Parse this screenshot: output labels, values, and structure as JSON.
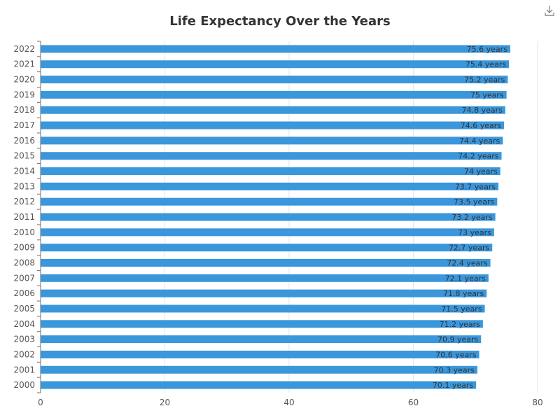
{
  "chart_data": {
    "type": "bar",
    "orientation": "horizontal",
    "title": "Life Expectancy Over the Years",
    "categories": [
      "2000",
      "2001",
      "2002",
      "2003",
      "2004",
      "2005",
      "2006",
      "2007",
      "2008",
      "2009",
      "2010",
      "2011",
      "2012",
      "2013",
      "2014",
      "2015",
      "2016",
      "2017",
      "2018",
      "2019",
      "2020",
      "2021",
      "2022"
    ],
    "values": [
      70.1,
      70.3,
      70.6,
      70.9,
      71.2,
      71.5,
      71.8,
      72.1,
      72.4,
      72.7,
      73,
      73.2,
      73.5,
      73.7,
      74,
      74.2,
      74.4,
      74.6,
      74.8,
      75,
      75.2,
      75.4,
      75.6
    ],
    "value_labels": [
      "70.1 years",
      "70.3 years",
      "70.6 years",
      "70.9 years",
      "71.2 years",
      "71.5 years",
      "71.8 years",
      "72.1 years",
      "72.4 years",
      "72.7 years",
      "73 years",
      "73.2 years",
      "73.5 years",
      "73.7 years",
      "74 years",
      "74.2 years",
      "74.4 years",
      "74.6 years",
      "74.8 years",
      "75 years",
      "75.2 years",
      "75.4 years",
      "75.6 years"
    ],
    "xticks": [
      "0",
      "20",
      "40",
      "60",
      "80"
    ],
    "xlim": [
      0,
      80
    ],
    "xlabel": "",
    "ylabel": "",
    "grid": true,
    "bar_color": "#3a97dc"
  },
  "toolbar": {
    "download_icon": "download-icon"
  }
}
